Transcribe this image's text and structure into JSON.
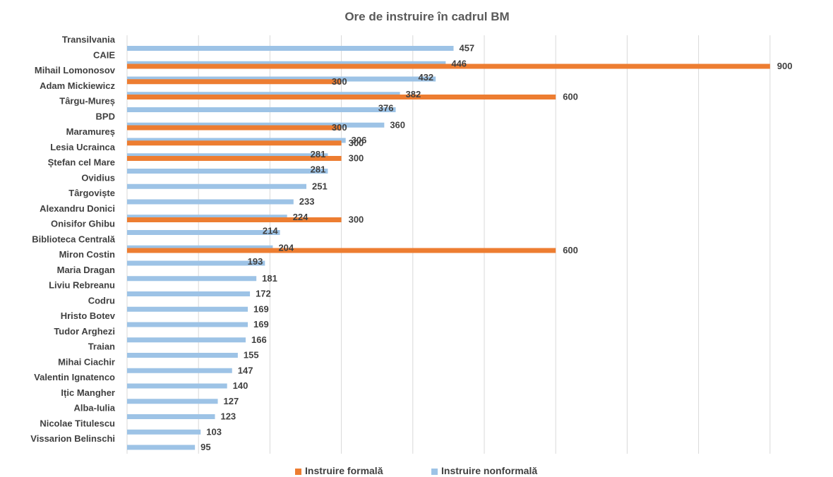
{
  "chart_data": {
    "type": "bar",
    "orientation": "horizontal",
    "title": "Ore de instruire în cadrul BM",
    "categories": [
      "Transilvania",
      "CAIE",
      "Mihail Lomonosov",
      "Adam Mickiewicz",
      "Târgu-Mureș",
      "BPD",
      "Maramureș",
      "Lesia Ucrainca",
      "Ștefan cel Mare",
      "Ovidius",
      "Târgoviște",
      "Alexandru Donici",
      "Onisifor Ghibu",
      "Biblioteca Centrală",
      "Miron Costin",
      "Maria Dragan",
      "Liviu  Rebreanu",
      "Codru",
      "Hristo Botev",
      "Tudor Arghezi",
      "Traian",
      "Mihai Ciachir",
      "Valentin Ignatenco",
      "Ițic Mangher",
      "Alba-Iulia",
      "Nicolae Titulescu",
      "Vissarion Belinschi"
    ],
    "series": [
      {
        "name": "Instruire formală",
        "color": "#ed7d31",
        "values": [
          null,
          null,
          900,
          300,
          600,
          null,
          300,
          300,
          300,
          null,
          null,
          null,
          300,
          null,
          600,
          null,
          null,
          null,
          null,
          null,
          null,
          null,
          null,
          null,
          null,
          null,
          null
        ]
      },
      {
        "name": "Instruire nonformală",
        "color": "#9dc3e6",
        "values": [
          457,
          446,
          432,
          382,
          376,
          360,
          306,
          281,
          281,
          251,
          233,
          224,
          214,
          204,
          193,
          181,
          172,
          169,
          169,
          166,
          155,
          147,
          140,
          127,
          123,
          103,
          95
        ]
      }
    ],
    "xlim": [
      0,
      1000
    ],
    "grid": true,
    "data_labels": true,
    "legend_position": "bottom"
  }
}
